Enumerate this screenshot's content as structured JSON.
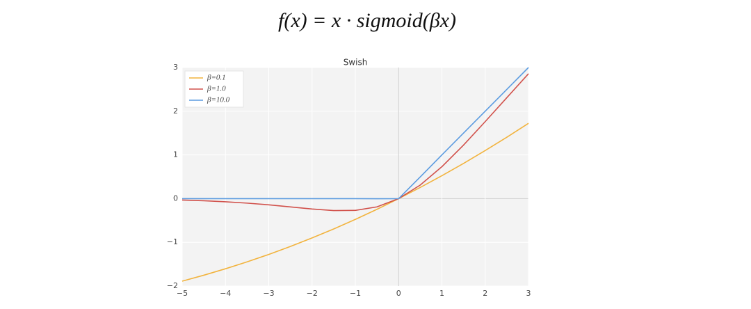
{
  "formula": "f(x) = x · sigmoid(βx)",
  "chart_data": {
    "type": "line",
    "title": "Swish",
    "x": [
      -5,
      -4.5,
      -4,
      -3.5,
      -3,
      -2.5,
      -2,
      -1.5,
      -1,
      -0.5,
      0,
      0.5,
      1,
      1.5,
      2,
      2.5,
      3
    ],
    "series": [
      {
        "name": "β=0.1",
        "color": "#f2b33d",
        "values": [
          -1.888,
          -1.752,
          -1.605,
          -1.447,
          -1.277,
          -1.095,
          -0.9,
          -0.694,
          -0.475,
          -0.244,
          0,
          0.256,
          0.525,
          0.806,
          1.1,
          1.405,
          1.723
        ]
      },
      {
        "name": "β=1.0",
        "color": "#d1514b",
        "values": [
          -0.033,
          -0.049,
          -0.072,
          -0.103,
          -0.142,
          -0.19,
          -0.238,
          -0.274,
          -0.269,
          -0.189,
          0,
          0.311,
          0.731,
          1.226,
          1.762,
          2.31,
          2.858
        ]
      },
      {
        "name": "β=10.0",
        "color": "#5b9be0",
        "values": [
          0,
          0,
          0,
          0,
          0,
          0,
          0,
          0,
          0,
          -0.003,
          0,
          0.497,
          1,
          1.5,
          2,
          2.5,
          3
        ]
      }
    ],
    "xlim": [
      -5,
      3
    ],
    "xticks": [
      {
        "value": -5,
        "label": "−5"
      },
      {
        "value": -4,
        "label": "−4"
      },
      {
        "value": -3,
        "label": "−3"
      },
      {
        "value": -2,
        "label": "−2"
      },
      {
        "value": -1,
        "label": "−1"
      },
      0,
      1,
      2,
      3
    ],
    "ylim": [
      -2,
      3
    ],
    "yticks": [
      {
        "value": -2,
        "label": "−2"
      },
      {
        "value": -1,
        "label": "−1"
      },
      0,
      1,
      2,
      3
    ],
    "grid": true,
    "legend": "upper-left"
  }
}
